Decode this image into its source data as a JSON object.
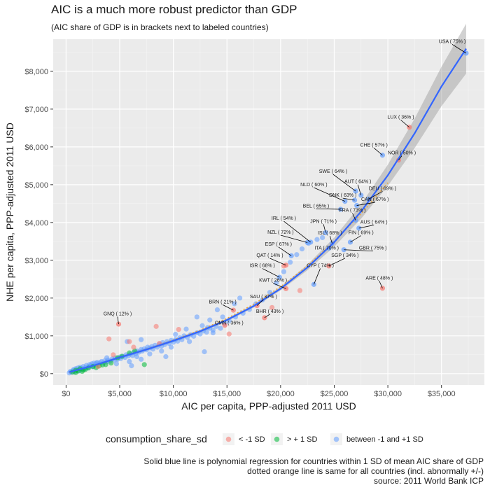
{
  "title": "AIC is a much more robust predictor than GDP",
  "subtitle": "(AIC share of GDP is in brackets next to labeled countries)",
  "caption": [
    "Solid blue line is polynomial regression for countries within 1 SD of mean AIC share of GDP",
    "dotted orange line is same for all countries (incl. abnormally +/-)",
    "source: 2011 World Bank ICP"
  ],
  "chart_data": {
    "type": "scatter",
    "xlabel": "AIC per capita, PPP-adjusted 2011 USD",
    "ylabel": "NHE per capita, PPP-adjusted 2011 USD",
    "xlim": [
      -1200,
      39000
    ],
    "ylim": [
      -300,
      8850
    ],
    "x_ticks": [
      0,
      5000,
      10000,
      15000,
      20000,
      25000,
      30000,
      35000
    ],
    "x_tick_labels": [
      "$0",
      "$5,000",
      "$10,000",
      "$15,000",
      "$20,000",
      "$25,000",
      "$30,000",
      "$35,000"
    ],
    "y_ticks": [
      0,
      1000,
      2000,
      3000,
      4000,
      5000,
      6000,
      7000,
      8000
    ],
    "y_tick_labels": [
      "$0",
      "$1,000",
      "$2,000",
      "$3,000",
      "$4,000",
      "$5,000",
      "$6,000",
      "$7,000",
      "$8,000"
    ],
    "grid": true,
    "legend": {
      "title": "consumption_share_sd",
      "placement": "bottom",
      "items": [
        {
          "label": "< -1 SD",
          "color": "#f8766d"
        },
        {
          "label": "> + 1 SD",
          "color": "#00ba38"
        },
        {
          "label": "between -1 and +1 SD",
          "color": "#619cff"
        }
      ]
    },
    "colors": {
      "low": "#f8766d",
      "high": "#00ba38",
      "mid": "#619cff",
      "fit_line": "#3366ff",
      "fit_all": "#e8a33c",
      "panel": "#ebebeb",
      "ribbon": "#9a9a9a"
    },
    "labeled_points": [
      {
        "name": "USA ( 75% )",
        "x": 37300,
        "y": 8480,
        "group": "mid",
        "lx": 36000,
        "ly": 8750
      },
      {
        "name": "LUX ( 36% )",
        "x": 32000,
        "y": 6520,
        "group": "low",
        "lx": 31200,
        "ly": 6750
      },
      {
        "name": "CHE ( 57% )",
        "x": 29500,
        "y": 5780,
        "group": "mid",
        "lx": 28700,
        "ly": 6010
      },
      {
        "name": "NOR ( 50% )",
        "x": 31000,
        "y": 5650,
        "group": "low",
        "lx": 31300,
        "ly": 5800
      },
      {
        "name": "SWE ( 64% )",
        "x": 27000,
        "y": 4830,
        "group": "mid",
        "lx": 24900,
        "ly": 5310
      },
      {
        "name": "AUT ( 64% )",
        "x": 27500,
        "y": 4720,
        "group": "mid",
        "lx": 27200,
        "ly": 5040
      },
      {
        "name": "NLD ( 60% )",
        "x": 26000,
        "y": 4560,
        "group": "mid",
        "lx": 23100,
        "ly": 4960
      },
      {
        "name": "DEU ( 69% )",
        "x": 28200,
        "y": 4620,
        "group": "mid",
        "lx": 29500,
        "ly": 4860
      },
      {
        "name": "DNK ( 63% )",
        "x": 26900,
        "y": 4590,
        "group": "mid",
        "lx": 25800,
        "ly": 4680
      },
      {
        "name": "CAN ( 67% )",
        "x": 27100,
        "y": 4450,
        "group": "mid",
        "lx": 28800,
        "ly": 4570
      },
      {
        "name": "BEL ( 65% )",
        "x": 25600,
        "y": 4350,
        "group": "mid",
        "lx": 23300,
        "ly": 4400
      },
      {
        "name": "FRA ( 73% )",
        "x": 27000,
        "y": 4060,
        "group": "mid",
        "lx": 26700,
        "ly": 4280
      },
      {
        "name": "IRL ( 54% )",
        "x": 22800,
        "y": 3480,
        "group": "mid",
        "lx": 20300,
        "ly": 4070
      },
      {
        "name": "AUS ( 64% )",
        "x": 27300,
        "y": 3850,
        "group": "mid",
        "lx": 28700,
        "ly": 3970
      },
      {
        "name": "JPN ( 71% )",
        "x": 24200,
        "y": 3730,
        "group": "mid",
        "lx": 24000,
        "ly": 3990
      },
      {
        "name": "NZL ( 72% )",
        "x": 22500,
        "y": 3470,
        "group": "mid",
        "lx": 20000,
        "ly": 3700
      },
      {
        "name": "ISL ( 68% )",
        "x": 24800,
        "y": 3450,
        "group": "mid",
        "lx": 24600,
        "ly": 3680
      },
      {
        "name": "FIN ( 69% )",
        "x": 26500,
        "y": 3480,
        "group": "mid",
        "lx": 27500,
        "ly": 3690
      },
      {
        "name": "ESP ( 67% )",
        "x": 21000,
        "y": 3120,
        "group": "mid",
        "lx": 19800,
        "ly": 3390
      },
      {
        "name": "ITA ( 70% )",
        "x": 24500,
        "y": 3320,
        "group": "mid",
        "lx": 24300,
        "ly": 3280
      },
      {
        "name": "GBR ( 75% )",
        "x": 25900,
        "y": 3280,
        "group": "mid",
        "lx": 28600,
        "ly": 3280
      },
      {
        "name": "QAT ( 14% )",
        "x": 20500,
        "y": 2870,
        "group": "low",
        "lx": 19000,
        "ly": 3090
      },
      {
        "name": "SGP ( 34% )",
        "x": 24500,
        "y": 2850,
        "group": "low",
        "lx": 26000,
        "ly": 3090
      },
      {
        "name": "ISR ( 68% )",
        "x": 19900,
        "y": 2550,
        "group": "mid",
        "lx": 18300,
        "ly": 2820
      },
      {
        "name": "CYP ( 74% )",
        "x": 23100,
        "y": 2360,
        "group": "mid",
        "lx": 23700,
        "ly": 2820
      },
      {
        "name": "KWT ( 26% )",
        "x": 20500,
        "y": 2250,
        "group": "low",
        "lx": 19300,
        "ly": 2430
      },
      {
        "name": "ARE ( 48% )",
        "x": 29500,
        "y": 2260,
        "group": "low",
        "lx": 29200,
        "ly": 2490
      },
      {
        "name": "SAU ( 37% )",
        "x": 17800,
        "y": 1800,
        "group": "low",
        "lx": 18400,
        "ly": 2000
      },
      {
        "name": "BRN ( 21% )",
        "x": 15600,
        "y": 1680,
        "group": "low",
        "lx": 14600,
        "ly": 1860
      },
      {
        "name": "BHR ( 43% )",
        "x": 18500,
        "y": 1480,
        "group": "low",
        "lx": 19000,
        "ly": 1610
      },
      {
        "name": "OMN ( 36% )",
        "x": 14800,
        "y": 1280,
        "group": "low",
        "lx": 15200,
        "ly": 1300
      },
      {
        "name": "GNQ ( 12% )",
        "x": 4900,
        "y": 1310,
        "group": "low",
        "lx": 4800,
        "ly": 1540
      }
    ],
    "points_high": [
      [
        600,
        40
      ],
      [
        900,
        90
      ],
      [
        1100,
        70
      ],
      [
        1300,
        130
      ],
      [
        1500,
        60
      ],
      [
        1800,
        110
      ],
      [
        2100,
        150
      ],
      [
        2500,
        190
      ],
      [
        2800,
        160
      ],
      [
        3100,
        210
      ],
      [
        3400,
        230
      ],
      [
        3700,
        240
      ],
      [
        4200,
        280
      ],
      [
        4800,
        420
      ],
      [
        5200,
        460
      ],
      [
        5900,
        550
      ],
      [
        6400,
        600
      ],
      [
        7300,
        240
      ],
      [
        900,
        30
      ],
      [
        1600,
        100
      ]
    ],
    "points_low": [
      [
        4000,
        920
      ],
      [
        4400,
        500
      ],
      [
        5900,
        850
      ],
      [
        6300,
        700
      ],
      [
        8400,
        1250
      ],
      [
        10500,
        1170
      ],
      [
        15200,
        1050
      ],
      [
        19200,
        1750
      ],
      [
        20300,
        2850
      ],
      [
        21800,
        2200
      ],
      [
        8700,
        800
      ],
      [
        3000,
        190
      ]
    ],
    "points_mid": [
      [
        300,
        20
      ],
      [
        400,
        60
      ],
      [
        500,
        40
      ],
      [
        650,
        80
      ],
      [
        700,
        110
      ],
      [
        800,
        50
      ],
      [
        900,
        130
      ],
      [
        1000,
        90
      ],
      [
        1100,
        150
      ],
      [
        1200,
        70
      ],
      [
        1300,
        170
      ],
      [
        1400,
        110
      ],
      [
        1500,
        140
      ],
      [
        1600,
        190
      ],
      [
        1700,
        120
      ],
      [
        1800,
        160
      ],
      [
        1900,
        220
      ],
      [
        2000,
        150
      ],
      [
        2100,
        190
      ],
      [
        2200,
        240
      ],
      [
        2300,
        210
      ],
      [
        2400,
        260
      ],
      [
        2500,
        180
      ],
      [
        2600,
        280
      ],
      [
        2700,
        230
      ],
      [
        2800,
        270
      ],
      [
        2900,
        300
      ],
      [
        3000,
        260
      ],
      [
        3200,
        290
      ],
      [
        3300,
        320
      ],
      [
        3500,
        280
      ],
      [
        3600,
        340
      ],
      [
        3800,
        310
      ],
      [
        3900,
        360
      ],
      [
        4100,
        330
      ],
      [
        4300,
        390
      ],
      [
        4500,
        360
      ],
      [
        4600,
        420
      ],
      [
        4800,
        380
      ],
      [
        5000,
        440
      ],
      [
        5100,
        400
      ],
      [
        5300,
        460
      ],
      [
        5500,
        430
      ],
      [
        5600,
        500
      ],
      [
        5800,
        470
      ],
      [
        6000,
        520
      ],
      [
        6200,
        480
      ],
      [
        6300,
        560
      ],
      [
        6500,
        530
      ],
      [
        6600,
        600
      ],
      [
        6800,
        570
      ],
      [
        7000,
        640
      ],
      [
        7100,
        600
      ],
      [
        7300,
        660
      ],
      [
        7500,
        630
      ],
      [
        7600,
        700
      ],
      [
        7800,
        680
      ],
      [
        8000,
        720
      ],
      [
        8100,
        650
      ],
      [
        8300,
        750
      ],
      [
        8500,
        700
      ],
      [
        8700,
        780
      ],
      [
        8900,
        730
      ],
      [
        9000,
        820
      ],
      [
        9200,
        770
      ],
      [
        9400,
        850
      ],
      [
        9600,
        800
      ],
      [
        9800,
        880
      ],
      [
        10000,
        830
      ],
      [
        10200,
        900
      ],
      [
        10400,
        860
      ],
      [
        10600,
        950
      ],
      [
        10800,
        900
      ],
      [
        11000,
        1000
      ],
      [
        11300,
        960
      ],
      [
        11600,
        1030
      ],
      [
        11900,
        990
      ],
      [
        12200,
        1080
      ],
      [
        12500,
        1050
      ],
      [
        12800,
        1130
      ],
      [
        13100,
        1100
      ],
      [
        13400,
        1200
      ],
      [
        13700,
        1150
      ],
      [
        14000,
        1250
      ],
      [
        14400,
        1200
      ],
      [
        14800,
        1320
      ],
      [
        15200,
        1400
      ],
      [
        15800,
        1500
      ],
      [
        16500,
        1600
      ],
      [
        17100,
        1700
      ],
      [
        17700,
        1850
      ],
      [
        18300,
        1950
      ],
      [
        19000,
        2150
      ],
      [
        19600,
        2400
      ],
      [
        20300,
        2700
      ],
      [
        20900,
        2950
      ],
      [
        21500,
        3150
      ],
      [
        22000,
        3300
      ],
      [
        22600,
        3450
      ],
      [
        23400,
        3550
      ],
      [
        23900,
        3600
      ],
      [
        5700,
        850
      ],
      [
        7000,
        900
      ],
      [
        9300,
        450
      ],
      [
        6100,
        210
      ],
      [
        3800,
        420
      ],
      [
        12900,
        580
      ],
      [
        12200,
        1500
      ],
      [
        12700,
        1270
      ],
      [
        13200,
        1220
      ],
      [
        13700,
        1080
      ],
      [
        11200,
        1180
      ],
      [
        10200,
        1040
      ],
      [
        9800,
        700
      ],
      [
        8900,
        600
      ],
      [
        7800,
        520
      ],
      [
        7000,
        380
      ],
      [
        6600,
        450
      ],
      [
        5900,
        320
      ],
      [
        4700,
        260
      ],
      [
        11500,
        850
      ],
      [
        15700,
        1850
      ],
      [
        16200,
        2000
      ],
      [
        14100,
        1690
      ],
      [
        13400,
        1420
      ],
      [
        14600,
        1500
      ]
    ],
    "fit_mid": [
      [
        300,
        40
      ],
      [
        2500,
        210
      ],
      [
        5000,
        430
      ],
      [
        7500,
        640
      ],
      [
        10000,
        870
      ],
      [
        12500,
        1120
      ],
      [
        15000,
        1420
      ],
      [
        17500,
        1790
      ],
      [
        20000,
        2250
      ],
      [
        22500,
        2810
      ],
      [
        25000,
        3480
      ],
      [
        27500,
        4290
      ],
      [
        30000,
        5250
      ],
      [
        32500,
        6360
      ],
      [
        35000,
        7600
      ],
      [
        37300,
        8600
      ]
    ],
    "fit_all": [
      [
        300,
        30
      ],
      [
        2500,
        210
      ],
      [
        5000,
        430
      ],
      [
        7500,
        650
      ],
      [
        10000,
        890
      ],
      [
        12500,
        1150
      ],
      [
        15000,
        1460
      ],
      [
        17500,
        1840
      ],
      [
        20000,
        2300
      ],
      [
        22500,
        2850
      ],
      [
        25000,
        3500
      ],
      [
        27500,
        4230
      ],
      [
        30000,
        5050
      ]
    ]
  }
}
